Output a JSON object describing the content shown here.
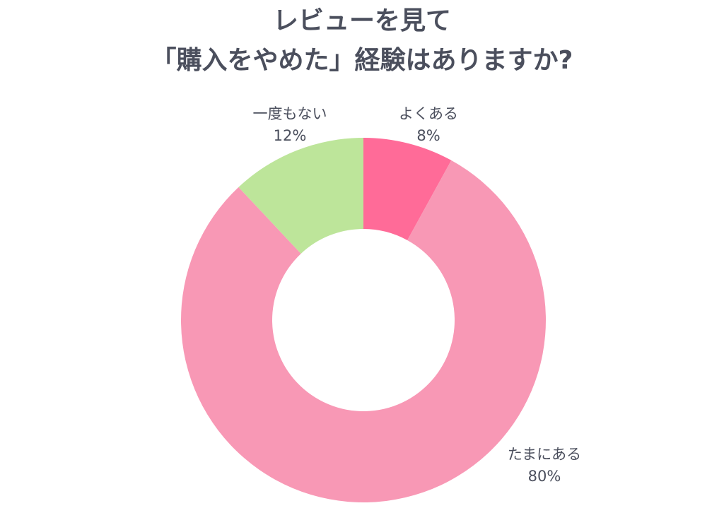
{
  "chart_data": {
    "type": "pie",
    "donut": true,
    "title_lines": [
      "レビューを見て",
      "「購入をやめた」経験はありますか?"
    ],
    "slices": [
      {
        "label": "よくある",
        "value": 8,
        "value_label": "8%",
        "color": "#FF6B98"
      },
      {
        "label": "たまにある",
        "value": 80,
        "value_label": "80%",
        "color": "#F898B5"
      },
      {
        "label": "一度もない",
        "value": 12,
        "value_label": "12%",
        "color": "#BDE59A"
      }
    ],
    "start": "top",
    "direction": "clockwise"
  }
}
